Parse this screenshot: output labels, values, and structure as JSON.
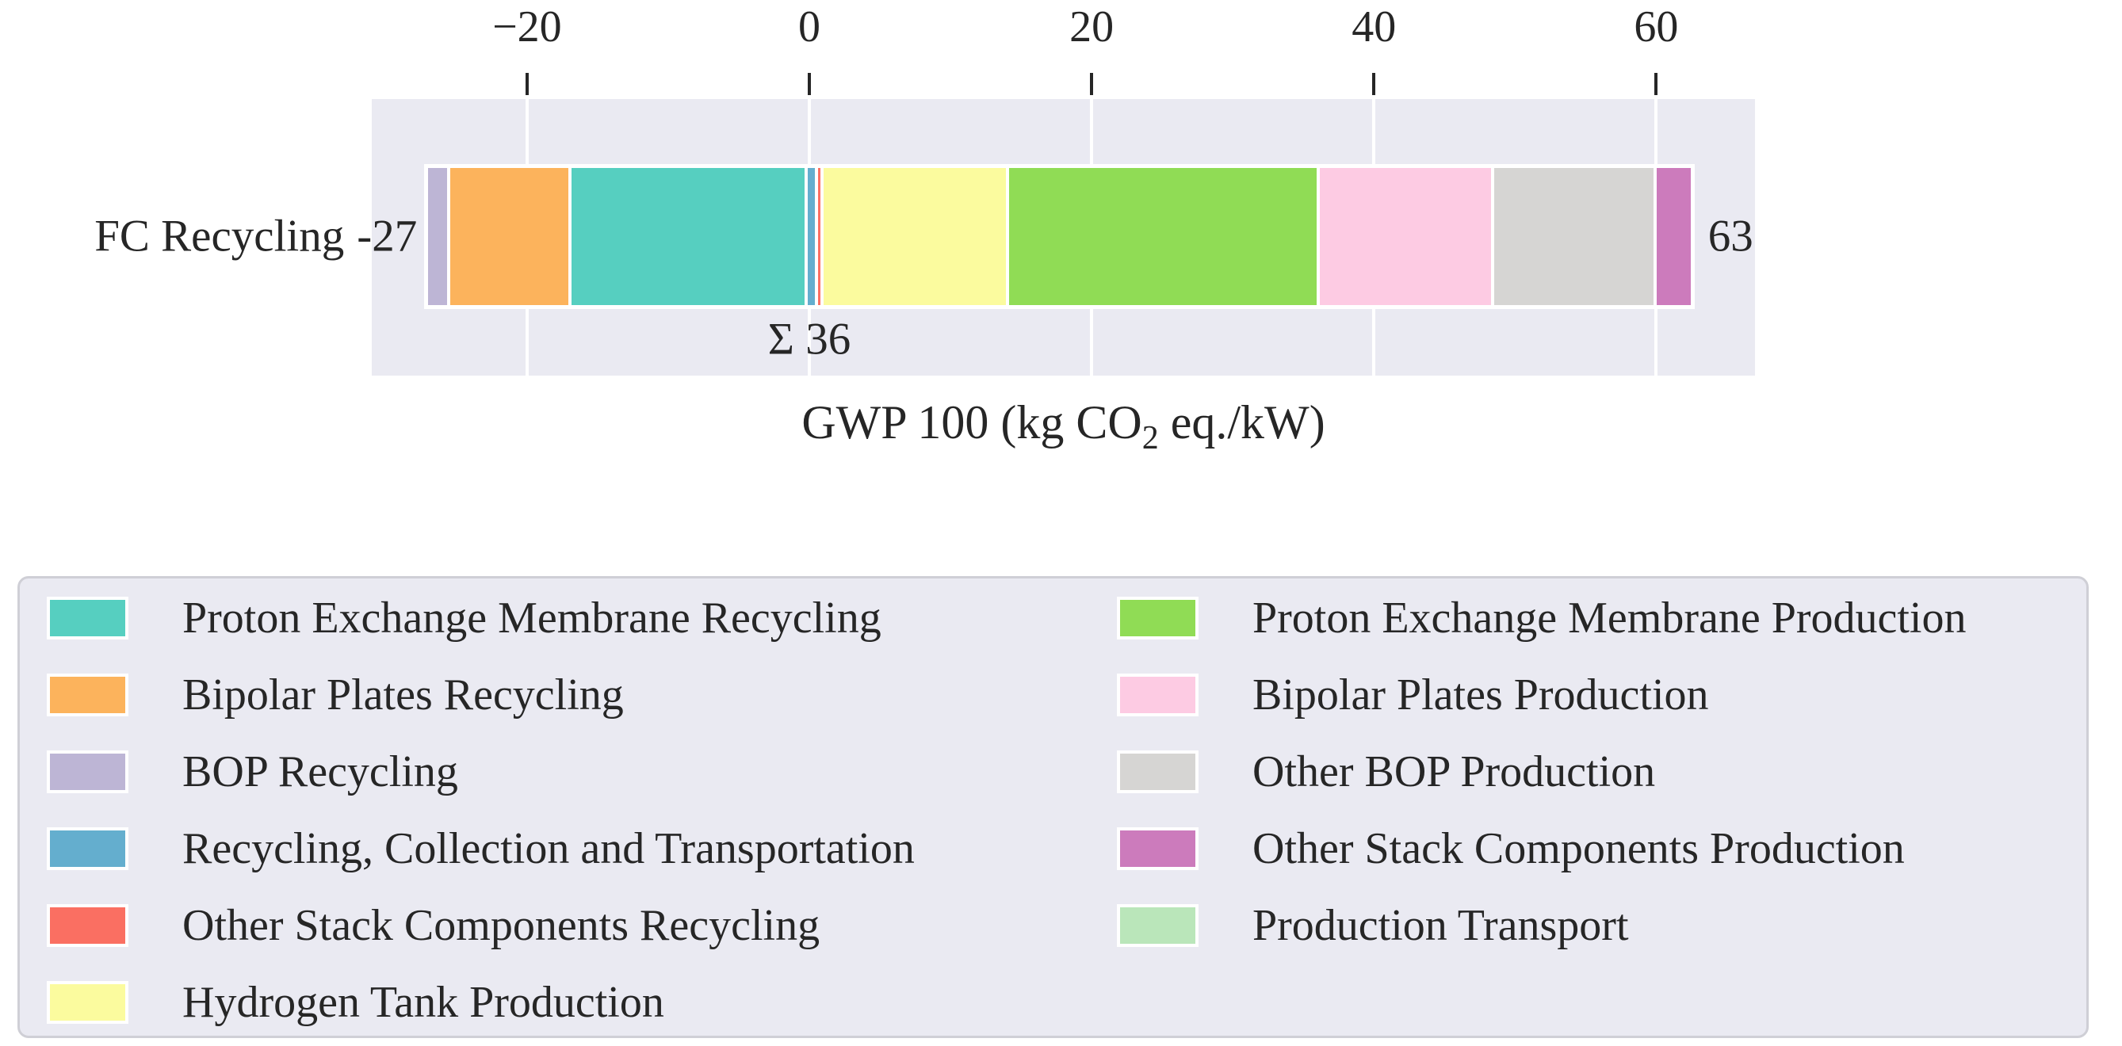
{
  "chart_data": {
    "type": "bar",
    "subtype": "horizontal-stacked-single-bar",
    "title": "",
    "xlabel": "GWP 100 (kg CO₂ eq./kW)",
    "xlabel_parts": {
      "pre": "GWP 100 (kg CO",
      "sub": "2",
      "post": " eq./kW)"
    },
    "xlim": [
      -31,
      67
    ],
    "grid": "on",
    "x_ticks": [
      {
        "value": -20,
        "label": "−20"
      },
      {
        "value": 0,
        "label": "0"
      },
      {
        "value": 20,
        "label": "20"
      },
      {
        "value": 40,
        "label": "40"
      },
      {
        "value": 60,
        "label": "60"
      }
    ],
    "bar": {
      "category": "FC Recycling",
      "negative_total": -27,
      "positive_total": 63,
      "sum": 36,
      "negative_total_label": "-27",
      "positive_total_label": "63",
      "sum_label": "Σ 36",
      "segments": [
        {
          "name": "BOP Recycling",
          "value": -1.4,
          "color": "#BDB5D5"
        },
        {
          "name": "Bipolar Plates Recycling",
          "value": -8.6,
          "color": "#FCB35C"
        },
        {
          "name": "Proton Exchange Membrane Recycling",
          "value": -17.0,
          "color": "#56CFC0"
        },
        {
          "name": "Recycling, Collection and Transportation",
          "value": 0.5,
          "color": "#64AECE"
        },
        {
          "name": "Other Stack Components Recycling",
          "value": 0.2,
          "color": "#FA6F62"
        },
        {
          "name": "Hydrogen Tank Production",
          "value": 13.3,
          "color": "#FBFB9E"
        },
        {
          "name": "Proton Exchange Membrane Production",
          "value": 22.4,
          "color": "#90DC55"
        },
        {
          "name": "Bipolar Plates Production",
          "value": 12.5,
          "color": "#FDCBE3"
        },
        {
          "name": "Other BOP Production",
          "value": 11.6,
          "color": "#D6D5D3"
        },
        {
          "name": "Other Stack Components Production",
          "value": 2.5,
          "color": "#CC7BBC"
        },
        {
          "name": "Production Transport",
          "value": 0.0,
          "color": "#BAE6BA"
        }
      ]
    },
    "legend_position": "bottom"
  },
  "legend": {
    "columns": [
      [
        {
          "label": "Proton Exchange Membrane Recycling",
          "color": "#56CFC0"
        },
        {
          "label": "Bipolar Plates Recycling",
          "color": "#FCB35C"
        },
        {
          "label": "BOP Recycling",
          "color": "#BDB5D5"
        },
        {
          "label": "Recycling, Collection and Transportation",
          "color": "#64AECE"
        },
        {
          "label": "Other Stack Components Recycling",
          "color": "#FA6F62"
        },
        {
          "label": "Hydrogen Tank Production",
          "color": "#FBFB9E"
        }
      ],
      [
        {
          "label": "Proton Exchange Membrane Production",
          "color": "#90DC55"
        },
        {
          "label": "Bipolar Plates Production",
          "color": "#FDCBE3"
        },
        {
          "label": "Other BOP Production",
          "color": "#D6D5D3"
        },
        {
          "label": "Other Stack Components Production",
          "color": "#CC7BBC"
        },
        {
          "label": "Production Transport",
          "color": "#BAE6BA"
        }
      ]
    ]
  }
}
